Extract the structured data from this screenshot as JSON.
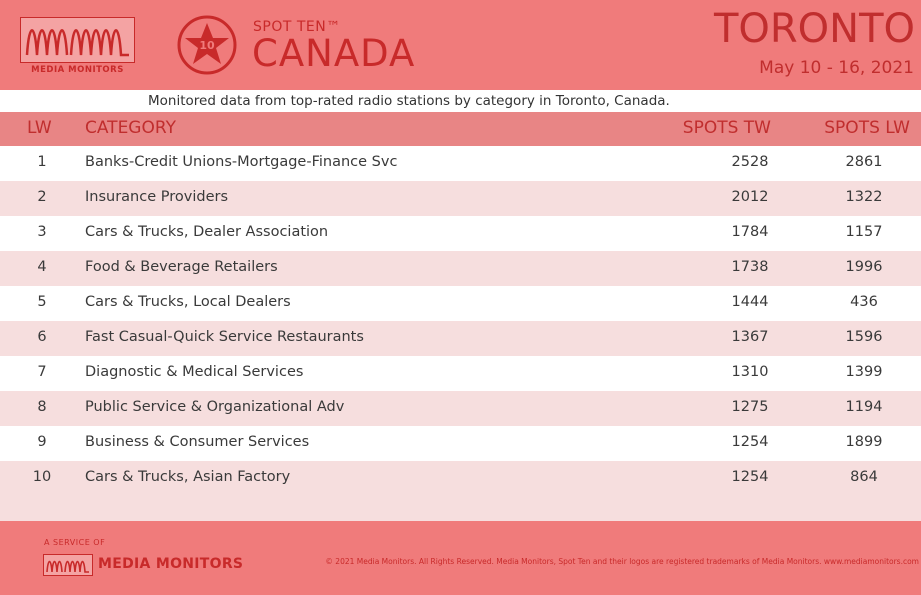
{
  "header": {
    "logo_text": "MEDIA MONITORS",
    "badge_number": "10",
    "brand_small": "SPOT TEN™",
    "brand_large": "CANADA",
    "city": "TORONTO",
    "date_range": "May 10 - 16, 2021"
  },
  "subtitle": "Monitored data from top-rated radio stations by category in Toronto, Canada.",
  "columns": {
    "rank": "LW",
    "category": "CATEGORY",
    "spots_tw": "SPOTS TW",
    "spots_lw": "SPOTS LW"
  },
  "rows": [
    {
      "rank": "1",
      "category": "Banks-Credit Unions-Mortgage-Finance Svc",
      "spots_tw": "2528",
      "spots_lw": "2861"
    },
    {
      "rank": "2",
      "category": "Insurance Providers",
      "spots_tw": "2012",
      "spots_lw": "1322"
    },
    {
      "rank": "3",
      "category": "Cars & Trucks, Dealer Association",
      "spots_tw": "1784",
      "spots_lw": "1157"
    },
    {
      "rank": "4",
      "category": "Food & Beverage Retailers",
      "spots_tw": "1738",
      "spots_lw": "1996"
    },
    {
      "rank": "5",
      "category": "Cars & Trucks, Local Dealers",
      "spots_tw": "1444",
      "spots_lw": "436"
    },
    {
      "rank": "6",
      "category": "Fast Casual-Quick Service Restaurants",
      "spots_tw": "1367",
      "spots_lw": "1596"
    },
    {
      "rank": "7",
      "category": "Diagnostic & Medical Services",
      "spots_tw": "1310",
      "spots_lw": "1399"
    },
    {
      "rank": "8",
      "category": "Public Service & Organizational Adv",
      "spots_tw": "1275",
      "spots_lw": "1194"
    },
    {
      "rank": "9",
      "category": "Business & Consumer Services",
      "spots_tw": "1254",
      "spots_lw": "1899"
    },
    {
      "rank": "10",
      "category": "Cars & Trucks, Asian Factory",
      "spots_tw": "1254",
      "spots_lw": "864"
    }
  ],
  "footer": {
    "service_of": "A SERVICE OF",
    "brand": "MEDIA MONITORS",
    "copyright": "© 2021 Media Monitors. All Rights Reserved. Media Monitors, Spot Ten and their logos are registered trademarks of Media Monitors. www.mediamonitors.com"
  },
  "colors": {
    "background": "#f07b7b",
    "accent": "#c02e2e",
    "row_alt": "#f6dede",
    "column_header": "#e88585"
  },
  "icons": {
    "logo": "waveform-logo-icon",
    "badge": "star-badge-icon"
  }
}
